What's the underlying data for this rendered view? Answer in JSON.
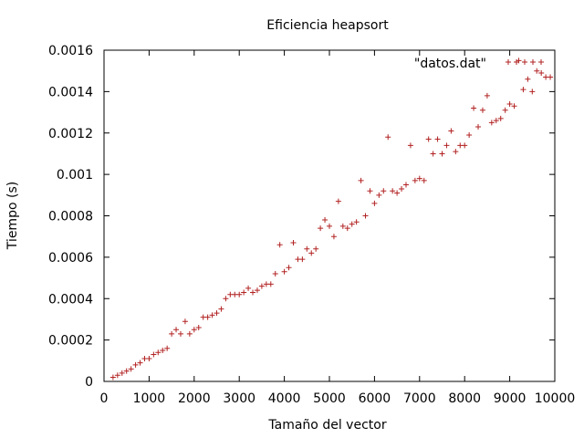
{
  "chart_data": {
    "type": "scatter",
    "title": "Eficiencia heapsort",
    "xlabel": "Tamaño del vector",
    "ylabel": "Tiempo (s)",
    "xlim": [
      0,
      10000
    ],
    "ylim": [
      0,
      0.0016
    ],
    "grid": false,
    "legend_position": "top-right",
    "xticks": [
      0,
      1000,
      2000,
      3000,
      4000,
      5000,
      6000,
      7000,
      8000,
      9000,
      10000
    ],
    "xtick_labels": [
      "0",
      "1000",
      "2000",
      "3000",
      "4000",
      "5000",
      "6000",
      "7000",
      "8000",
      "9000",
      "10000"
    ],
    "yticks": [
      0,
      0.0002,
      0.0004,
      0.0006,
      0.0008,
      0.001,
      0.0012,
      0.0014,
      0.0016
    ],
    "ytick_labels": [
      "0",
      "0.0002",
      "0.0004",
      "0.0006",
      "0.0008",
      "0.001",
      "0.0012",
      "0.0014",
      "0.0016"
    ],
    "series": [
      {
        "name": "\"datos.dat\"",
        "color": "#b22222",
        "marker": "plus",
        "x": [
          200,
          300,
          400,
          500,
          600,
          700,
          800,
          900,
          1000,
          1100,
          1200,
          1300,
          1400,
          1500,
          1600,
          1700,
          1800,
          1900,
          2000,
          2100,
          2200,
          2300,
          2400,
          2500,
          2600,
          2700,
          2800,
          2900,
          3000,
          3100,
          3200,
          3300,
          3400,
          3500,
          3600,
          3700,
          3800,
          3900,
          4000,
          4100,
          4200,
          4300,
          4400,
          4500,
          4600,
          4700,
          4800,
          4900,
          5000,
          5100,
          5200,
          5300,
          5400,
          5500,
          5600,
          5700,
          5800,
          5900,
          6000,
          6100,
          6200,
          6300,
          6400,
          6500,
          6600,
          6700,
          6800,
          6900,
          7000,
          7100,
          7200,
          7300,
          7400,
          7500,
          7600,
          7700,
          7800,
          7900,
          8000,
          8100,
          8200,
          8300,
          8400,
          8500,
          8600,
          8700,
          8800,
          8900,
          9000,
          9100,
          9200,
          9300,
          9400,
          9500,
          9600,
          9700,
          9800,
          9900
        ],
        "y": [
          2e-05,
          3e-05,
          4e-05,
          5e-05,
          6e-05,
          8e-05,
          9e-05,
          0.00011,
          0.00011,
          0.00013,
          0.00014,
          0.00015,
          0.00016,
          0.00023,
          0.00025,
          0.00023,
          0.00029,
          0.00023,
          0.00025,
          0.00026,
          0.00031,
          0.00031,
          0.00032,
          0.00033,
          0.00035,
          0.0004,
          0.00042,
          0.00042,
          0.00042,
          0.00043,
          0.00045,
          0.00043,
          0.00044,
          0.00046,
          0.00047,
          0.00047,
          0.00052,
          0.00066,
          0.00053,
          0.00055,
          0.00067,
          0.00059,
          0.00059,
          0.00064,
          0.00062,
          0.00064,
          0.00074,
          0.00078,
          0.00075,
          0.0007,
          0.00087,
          0.00075,
          0.00074,
          0.00076,
          0.00077,
          0.00097,
          0.0008,
          0.00092,
          0.00086,
          0.0009,
          0.00092,
          0.00118,
          0.00092,
          0.00091,
          0.00093,
          0.00095,
          0.00114,
          0.00097,
          0.00098,
          0.00097,
          0.00117,
          0.0011,
          0.00117,
          0.0011,
          0.00114,
          0.00121,
          0.00111,
          0.00114,
          0.00114,
          0.00119,
          0.00132,
          0.00123,
          0.00131,
          0.00138,
          0.00125,
          0.00126,
          0.00127,
          0.00131,
          0.00134,
          0.00133,
          0.00155,
          0.00141,
          0.00146,
          0.0014,
          0.0015,
          0.00149,
          0.00147,
          0.00147
        ]
      }
    ]
  }
}
